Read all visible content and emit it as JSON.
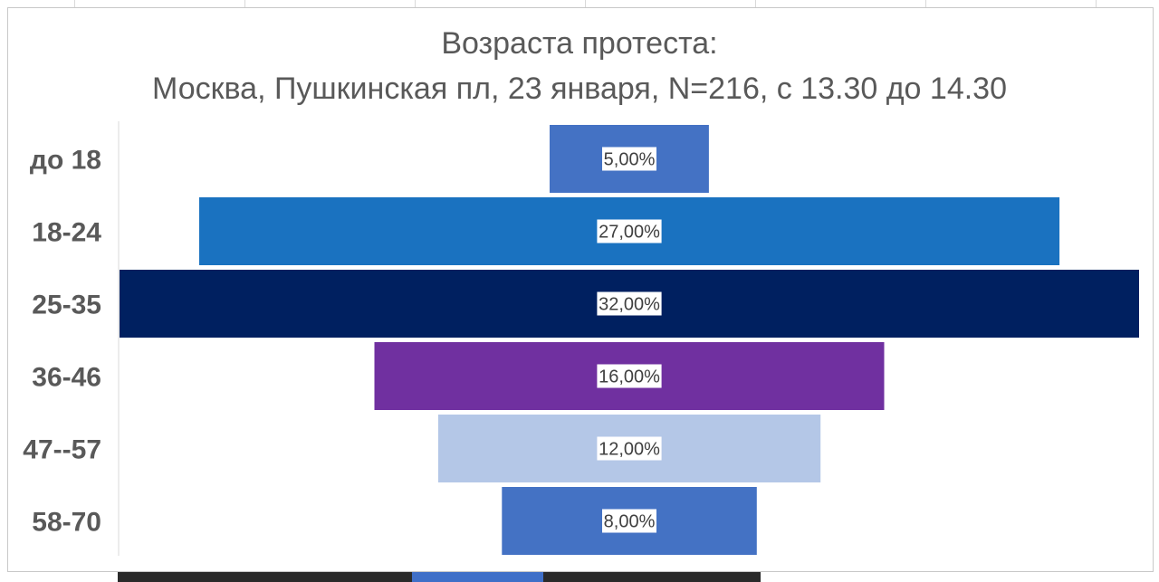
{
  "chart_data": {
    "type": "bar",
    "orientation": "horizontal-funnel",
    "title_line1": "Возраста протеста:",
    "title_line2": "Москва, Пушкинская пл, 23 января, N=216, с 13.30 до 14.30",
    "categories": [
      "до 18",
      "18-24",
      "25-35",
      "36-46",
      "47--57",
      "58-70"
    ],
    "values": [
      5,
      27,
      32,
      16,
      12,
      8
    ],
    "data_labels": [
      "5,00%",
      "27,00%",
      "32,00%",
      "16,00%",
      "12,00%",
      "8,00%"
    ],
    "colors": [
      "#4472c4",
      "#1a72c0",
      "#002060",
      "#7030a0",
      "#b4c7e7",
      "#4472c4"
    ],
    "xlim": [
      0,
      32
    ],
    "grid": false,
    "legend": "none"
  }
}
